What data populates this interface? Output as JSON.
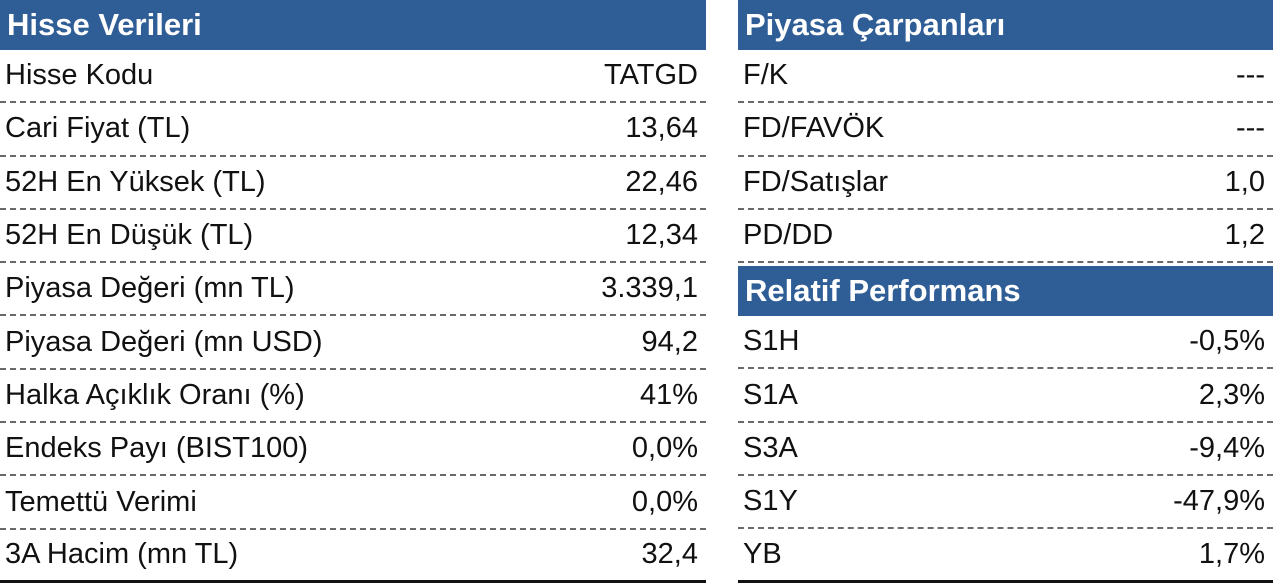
{
  "hisse": {
    "title": "Hisse Verileri",
    "rows": [
      {
        "label": "Hisse Kodu",
        "value": "TATGD"
      },
      {
        "label": "Cari Fiyat (TL)",
        "value": "13,64"
      },
      {
        "label": "52H En Yüksek (TL)",
        "value": "22,46"
      },
      {
        "label": "52H En Düşük (TL)",
        "value": "12,34"
      },
      {
        "label": "Piyasa Değeri (mn TL)",
        "value": "3.339,1"
      },
      {
        "label": "Piyasa Değeri (mn USD)",
        "value": "94,2"
      },
      {
        "label": "Halka Açıklık Oranı (%)",
        "value": "41%"
      },
      {
        "label": "Endeks Payı (BIST100)",
        "value": "0,0%"
      },
      {
        "label": "Temettü Verimi",
        "value": "0,0%"
      },
      {
        "label": "3A Hacim (mn TL)",
        "value": "32,4"
      }
    ]
  },
  "carpanlar": {
    "title": "Piyasa Çarpanları",
    "rows": [
      {
        "label": "F/K",
        "value": "---"
      },
      {
        "label": "FD/FAVÖK",
        "value": "---"
      },
      {
        "label": "FD/Satışlar",
        "value": "1,0"
      },
      {
        "label": "PD/DD",
        "value": "1,2"
      }
    ]
  },
  "performans": {
    "title": "Relatif Performans",
    "rows": [
      {
        "label": "S1H",
        "value": "-0,5%"
      },
      {
        "label": "S1A",
        "value": "2,3%"
      },
      {
        "label": "S3A",
        "value": "-9,4%"
      },
      {
        "label": "S1Y",
        "value": "-47,9%"
      },
      {
        "label": "YB",
        "value": "1,7%"
      }
    ]
  }
}
